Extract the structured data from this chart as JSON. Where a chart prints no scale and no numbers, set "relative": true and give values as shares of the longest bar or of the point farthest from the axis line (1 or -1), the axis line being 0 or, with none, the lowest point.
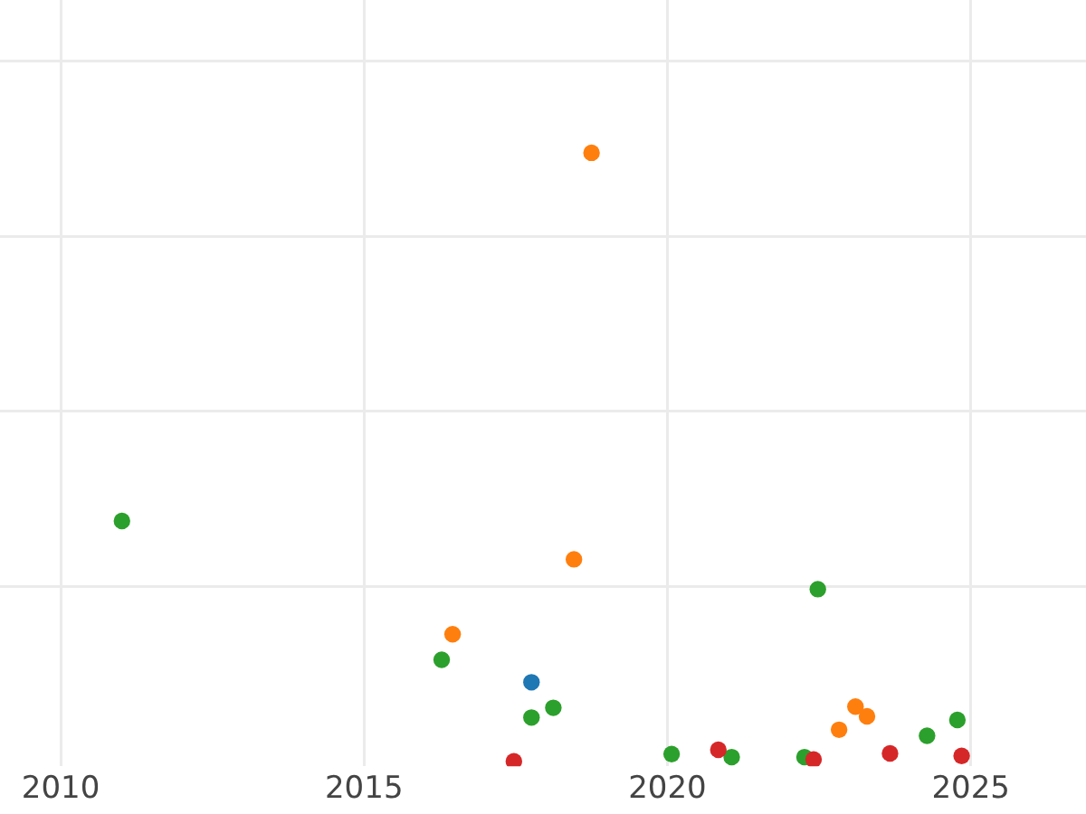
{
  "chart_data": {
    "type": "scatter",
    "relative": true,
    "grid": true,
    "marker": "circle",
    "tick_labels": "x",
    "xlim": [
      2009,
      2026.9
    ],
    "xticks": [
      2010,
      2015,
      2020,
      2025
    ],
    "series": [
      {
        "color": "#1f77b4",
        "x": [
          2017.76
        ],
        "values": [
          0.13
        ]
      },
      {
        "color": "#ff7f0e",
        "x": [
          2016.46,
          2018.46,
          2018.75,
          2022.83,
          2023.1,
          2023.29
        ],
        "values": [
          0.209,
          0.332,
          1,
          0.052,
          0.09,
          0.074
        ]
      },
      {
        "color": "#2ca02c",
        "x": [
          2011.01,
          2016.28,
          2017.76,
          2018.12,
          2020.07,
          2021.06,
          2022.26,
          2022.48,
          2024.28,
          2024.78
        ],
        "values": [
          0.395,
          0.167,
          0.072,
          0.088,
          0.012,
          0.007,
          0.007,
          0.283,
          0.042,
          0.068
        ]
      },
      {
        "color": "#d62728",
        "x": [
          2017.47,
          2020.84,
          2022.41,
          2023.67,
          2024.85
        ],
        "values": [
          0,
          0.019,
          0.003,
          0.013,
          0.009
        ]
      }
    ]
  }
}
